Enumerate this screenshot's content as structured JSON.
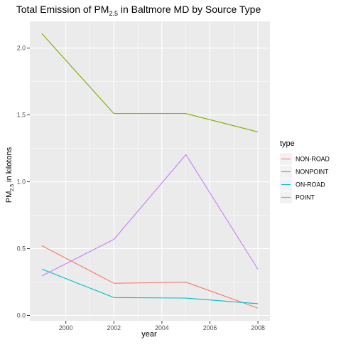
{
  "chart_data": {
    "type": "line",
    "title": {
      "prefix": "Total Emission of PM",
      "subscript": "2.5",
      "suffix": " in Baltmore MD by Source Type"
    },
    "xlabel": "year",
    "ylabel": {
      "prefix": "PM",
      "subscript": "2.5",
      "suffix": " in kilotons"
    },
    "x": [
      1999,
      2002,
      2005,
      2008
    ],
    "xlim": [
      1998.5,
      2008.5
    ],
    "ylim": [
      -0.04,
      2.2
    ],
    "x_ticks": [
      2000,
      2002,
      2004,
      2006,
      2008
    ],
    "x_tick_labels": [
      "2000",
      "2002",
      "2004",
      "2006",
      "2008"
    ],
    "y_ticks": [
      0,
      0.5,
      1,
      1.5,
      2
    ],
    "y_tick_labels": [
      "0.0",
      "0.5",
      "1.0",
      "1.5",
      "2.0"
    ],
    "grid": true,
    "legend": {
      "title": "type",
      "position": "right"
    },
    "series": [
      {
        "name": "NON-ROAD",
        "color": "#F8766D",
        "values": [
          0.522,
          0.241,
          0.249,
          0.055
        ]
      },
      {
        "name": "NONPOINT",
        "color": "#7CAE00",
        "values": [
          2.108,
          1.51,
          1.51,
          1.373
        ]
      },
      {
        "name": "ON-ROAD",
        "color": "#00BFC4",
        "values": [
          0.347,
          0.134,
          0.13,
          0.088
        ]
      },
      {
        "name": "POINT",
        "color": "#C77CFF",
        "values": [
          0.296,
          0.569,
          1.203,
          0.345
        ]
      }
    ]
  }
}
